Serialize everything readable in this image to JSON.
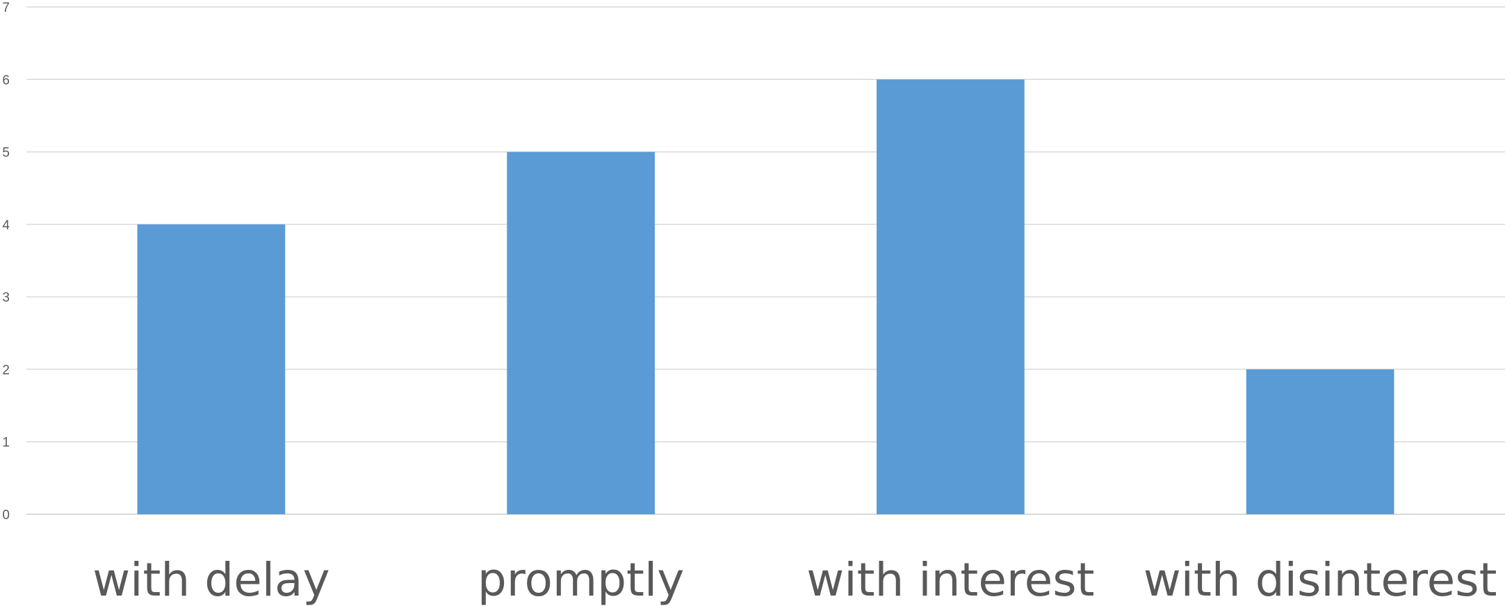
{
  "chart_data": {
    "type": "bar",
    "categories": [
      "with delay",
      "promptly",
      "with interest",
      "with disinterest"
    ],
    "values": [
      4,
      5,
      6,
      2
    ],
    "title": "",
    "xlabel": "",
    "ylabel": "",
    "ylim": [
      0,
      7
    ],
    "yticks": [
      0,
      1,
      2,
      3,
      4,
      5,
      6,
      7
    ],
    "grid": true,
    "legend": "none",
    "bar_color": "#5b9bd5",
    "gridline_color": "#d9d9d9",
    "text_color": "#595959"
  }
}
